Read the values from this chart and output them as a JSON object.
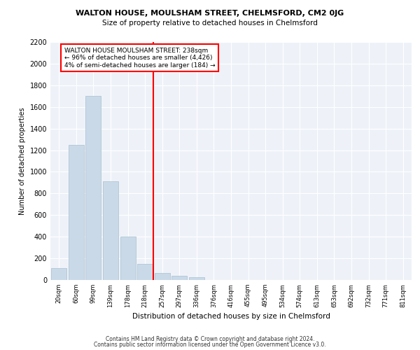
{
  "title1": "WALTON HOUSE, MOULSHAM STREET, CHELMSFORD, CM2 0JG",
  "title2": "Size of property relative to detached houses in Chelmsford",
  "xlabel": "Distribution of detached houses by size in Chelmsford",
  "ylabel": "Number of detached properties",
  "bar_labels": [
    "20sqm",
    "60sqm",
    "99sqm",
    "139sqm",
    "178sqm",
    "218sqm",
    "257sqm",
    "297sqm",
    "336sqm",
    "376sqm",
    "416sqm",
    "455sqm",
    "495sqm",
    "534sqm",
    "574sqm",
    "613sqm",
    "653sqm",
    "692sqm",
    "732sqm",
    "771sqm",
    "811sqm"
  ],
  "bar_values": [
    110,
    1250,
    1700,
    910,
    400,
    150,
    65,
    40,
    25,
    0,
    0,
    0,
    0,
    0,
    0,
    0,
    0,
    0,
    0,
    0,
    0
  ],
  "bar_color": "#c9d9e8",
  "bar_edge_color": "#a8bfcf",
  "vline_x": 5.5,
  "vline_color": "red",
  "annotation_text": "WALTON HOUSE MOULSHAM STREET: 238sqm\n← 96% of detached houses are smaller (4,426)\n4% of semi-detached houses are larger (184) →",
  "annotation_box_color": "white",
  "annotation_box_edge": "red",
  "ylim": [
    0,
    2200
  ],
  "yticks": [
    0,
    200,
    400,
    600,
    800,
    1000,
    1200,
    1400,
    1600,
    1800,
    2000,
    2200
  ],
  "background_color": "#eef2f8",
  "grid_color": "#ffffff",
  "footer1": "Contains HM Land Registry data © Crown copyright and database right 2024.",
  "footer2": "Contains public sector information licensed under the Open Government Licence v3.0."
}
